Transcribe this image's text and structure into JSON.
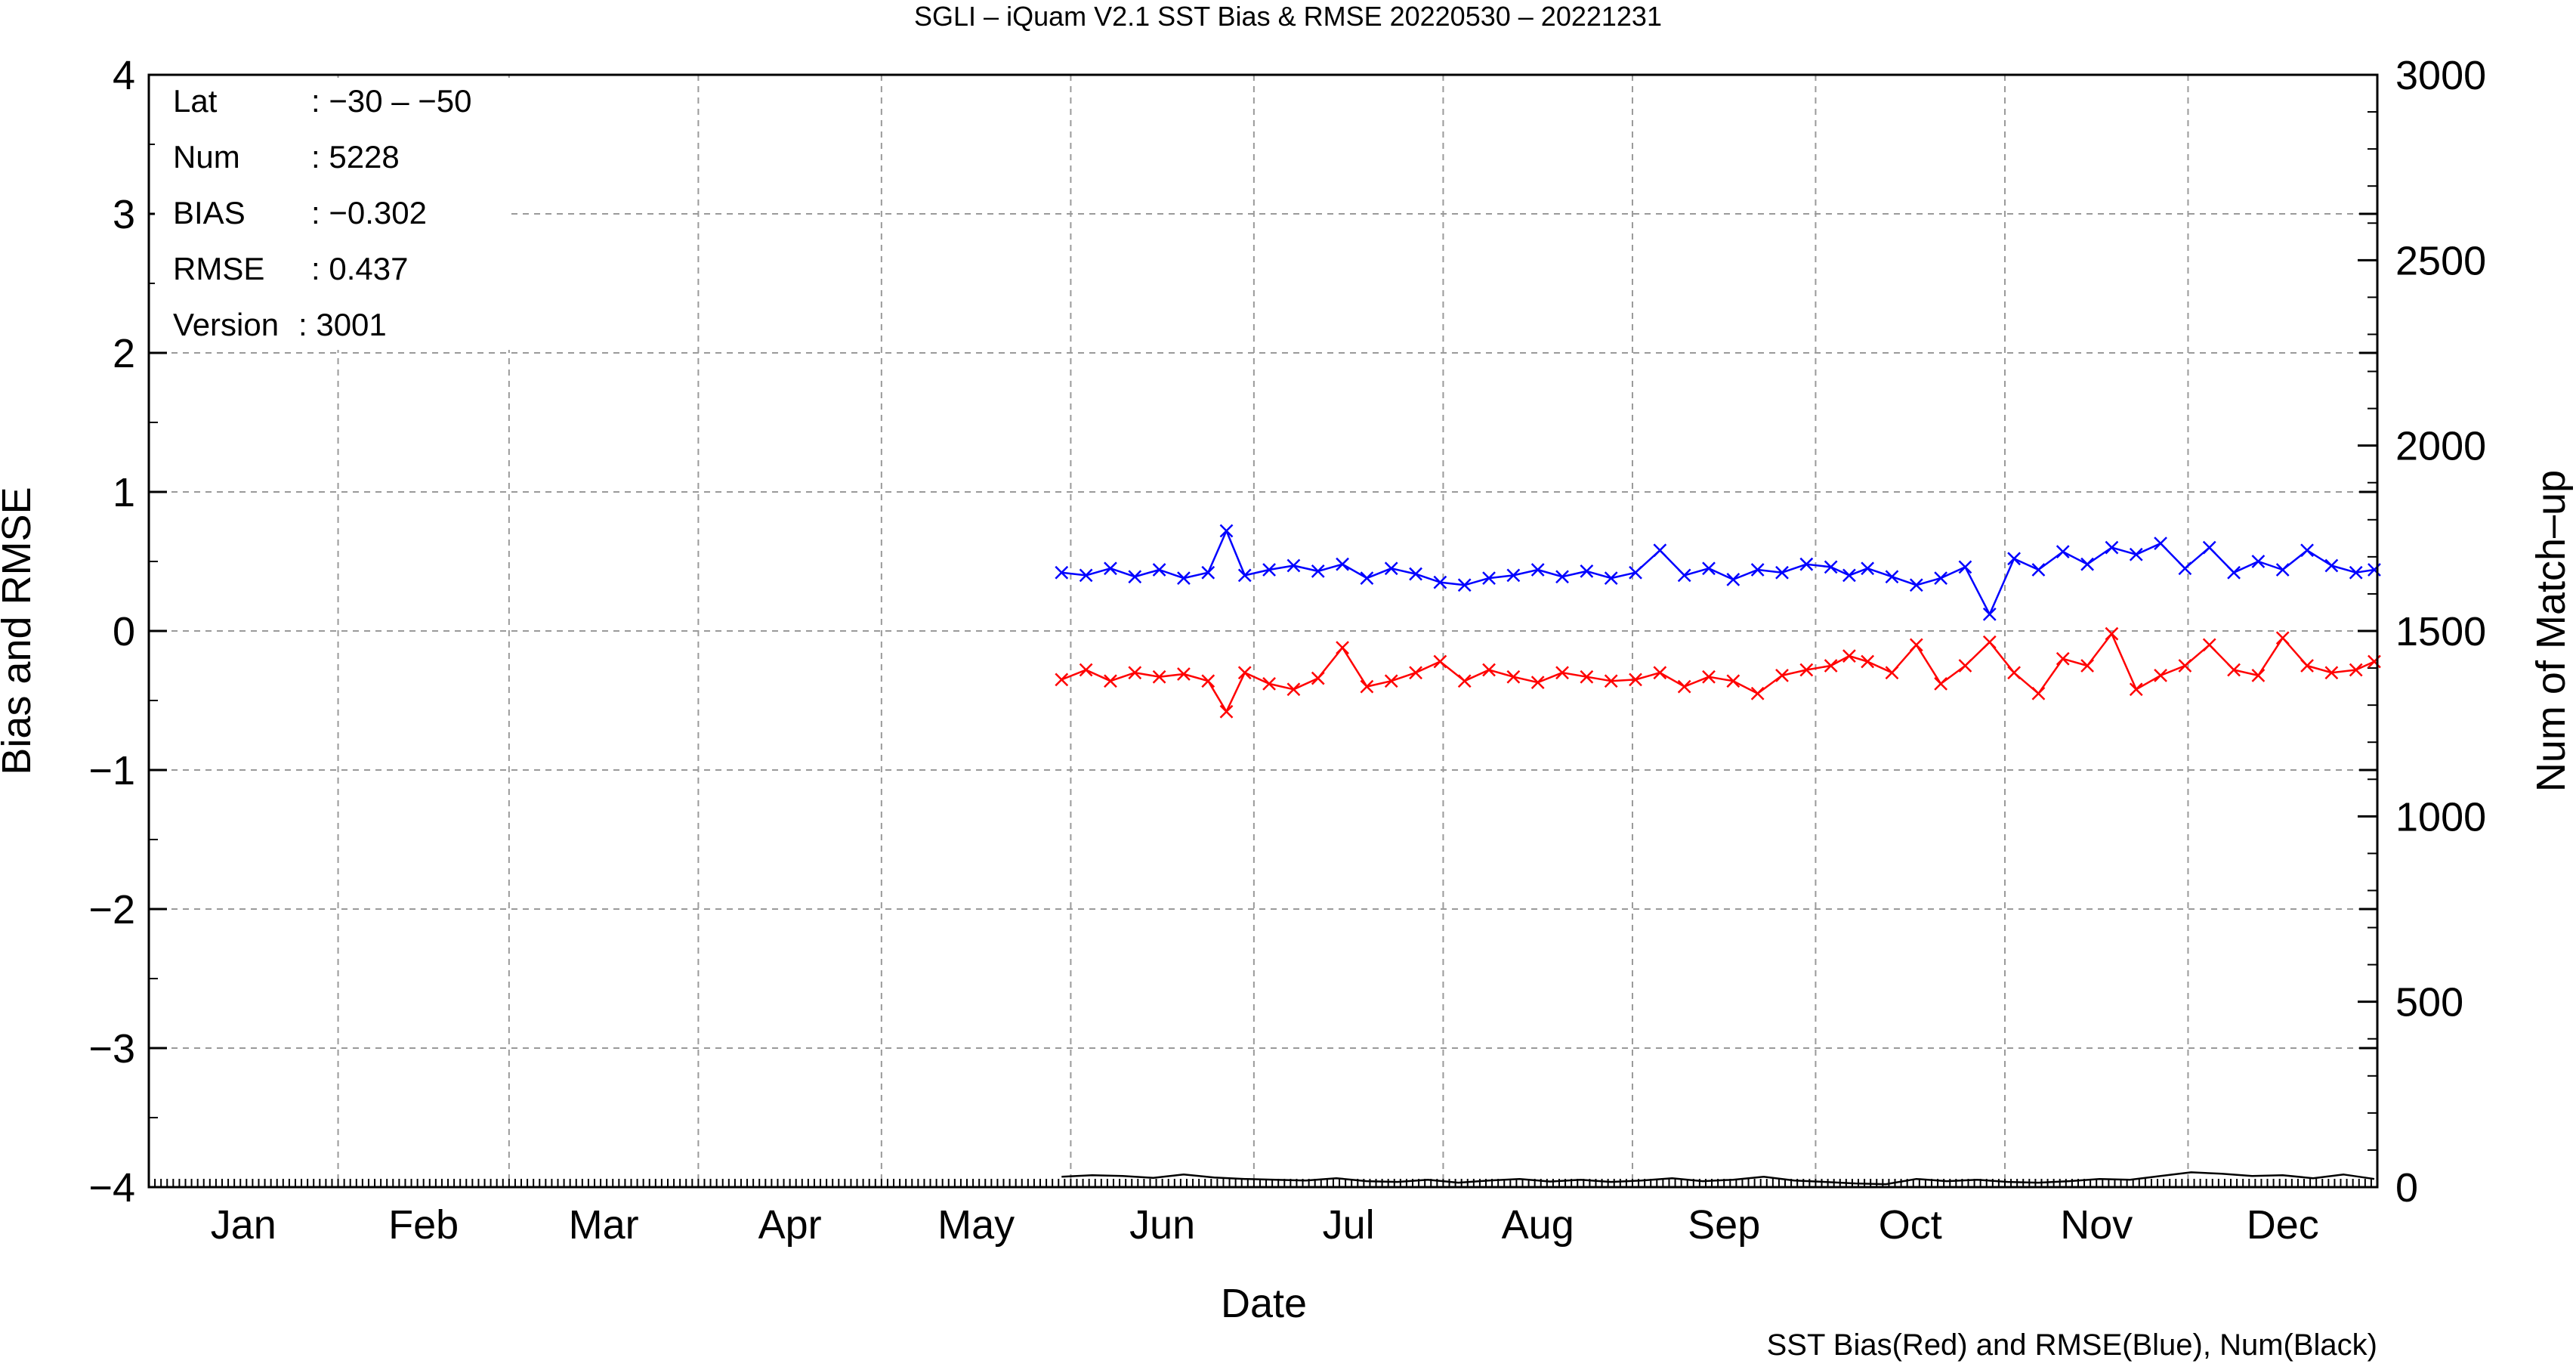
{
  "chart_data": {
    "type": "line",
    "title": "SGLI – iQuam V2.1 SST Bias & RMSE 20220530 – 20221231",
    "xlabel": "Date",
    "ylabel": "Bias and RMSE",
    "y2label": "Num of Match–up",
    "caption": "SST Bias(Red) and RMSE(Blue), Num(Black)",
    "x_domain": [
      "2022-01-01",
      "2022-12-31"
    ],
    "ylim": [
      -4,
      4
    ],
    "y2lim": [
      0,
      3000
    ],
    "y_ticks": [
      4,
      3,
      2,
      1,
      0,
      -1,
      -2,
      -3,
      -4
    ],
    "y_tick_labels": [
      "4",
      "3",
      "2",
      "1",
      "0",
      "−1",
      "−2",
      "−3",
      "−4"
    ],
    "y2_ticks": [
      3000,
      2500,
      2000,
      1500,
      1000,
      500,
      0
    ],
    "y2_tick_labels": [
      "3000",
      "2500",
      "2000",
      "1500",
      "1000",
      "500",
      "0"
    ],
    "months": [
      "Jan",
      "Feb",
      "Mar",
      "Apr",
      "May",
      "Jun",
      "Jul",
      "Aug",
      "Sep",
      "Oct",
      "Nov",
      "Dec"
    ],
    "grid": true,
    "info_box": [
      {
        "key": "Lat",
        "value": ": −30 – −50"
      },
      {
        "key": "Num",
        "value": ": 5228"
      },
      {
        "key": "BIAS",
        "value": ": −0.302"
      },
      {
        "key": "RMSE",
        "value": ": 0.437"
      },
      {
        "key": "Version",
        "value": ": 3001"
      }
    ],
    "series": [
      {
        "name": "RMSE",
        "color": "#0000ff",
        "axis": "left",
        "marker": "x",
        "dates": [
          "2022-05-30",
          "2022-06-03",
          "2022-06-07",
          "2022-06-11",
          "2022-06-15",
          "2022-06-19",
          "2022-06-23",
          "2022-06-26",
          "2022-06-29",
          "2022-07-03",
          "2022-07-07",
          "2022-07-11",
          "2022-07-15",
          "2022-07-19",
          "2022-07-23",
          "2022-07-27",
          "2022-07-31",
          "2022-08-04",
          "2022-08-08",
          "2022-08-12",
          "2022-08-16",
          "2022-08-20",
          "2022-08-24",
          "2022-08-28",
          "2022-09-01",
          "2022-09-05",
          "2022-09-09",
          "2022-09-13",
          "2022-09-17",
          "2022-09-21",
          "2022-09-25",
          "2022-09-29",
          "2022-10-03",
          "2022-10-06",
          "2022-10-09",
          "2022-10-13",
          "2022-10-17",
          "2022-10-21",
          "2022-10-25",
          "2022-10-29",
          "2022-11-02",
          "2022-11-06",
          "2022-11-10",
          "2022-11-14",
          "2022-11-18",
          "2022-11-22",
          "2022-11-26",
          "2022-11-30",
          "2022-12-04",
          "2022-12-08",
          "2022-12-12",
          "2022-12-16",
          "2022-12-20",
          "2022-12-24",
          "2022-12-28",
          "2022-12-31"
        ],
        "values": [
          0.42,
          0.4,
          0.45,
          0.39,
          0.44,
          0.38,
          0.42,
          0.72,
          0.4,
          0.44,
          0.47,
          0.43,
          0.48,
          0.38,
          0.45,
          0.41,
          0.35,
          0.33,
          0.38,
          0.4,
          0.44,
          0.39,
          0.43,
          0.38,
          0.42,
          0.58,
          0.4,
          0.45,
          0.37,
          0.44,
          0.42,
          0.48,
          0.46,
          0.4,
          0.45,
          0.39,
          0.33,
          0.38,
          0.46,
          0.12,
          0.52,
          0.44,
          0.57,
          0.48,
          0.6,
          0.55,
          0.63,
          0.45,
          0.6,
          0.42,
          0.5,
          0.44,
          0.58,
          0.47,
          0.42,
          0.44
        ]
      },
      {
        "name": "BIAS",
        "color": "#ff0000",
        "axis": "left",
        "marker": "x",
        "dates": [
          "2022-05-30",
          "2022-06-03",
          "2022-06-07",
          "2022-06-11",
          "2022-06-15",
          "2022-06-19",
          "2022-06-23",
          "2022-06-26",
          "2022-06-29",
          "2022-07-03",
          "2022-07-07",
          "2022-07-11",
          "2022-07-15",
          "2022-07-19",
          "2022-07-23",
          "2022-07-27",
          "2022-07-31",
          "2022-08-04",
          "2022-08-08",
          "2022-08-12",
          "2022-08-16",
          "2022-08-20",
          "2022-08-24",
          "2022-08-28",
          "2022-09-01",
          "2022-09-05",
          "2022-09-09",
          "2022-09-13",
          "2022-09-17",
          "2022-09-21",
          "2022-09-25",
          "2022-09-29",
          "2022-10-03",
          "2022-10-06",
          "2022-10-09",
          "2022-10-13",
          "2022-10-17",
          "2022-10-21",
          "2022-10-25",
          "2022-10-29",
          "2022-11-02",
          "2022-11-06",
          "2022-11-10",
          "2022-11-14",
          "2022-11-18",
          "2022-11-22",
          "2022-11-26",
          "2022-11-30",
          "2022-12-04",
          "2022-12-08",
          "2022-12-12",
          "2022-12-16",
          "2022-12-20",
          "2022-12-24",
          "2022-12-28",
          "2022-12-31"
        ],
        "values": [
          -0.35,
          -0.28,
          -0.36,
          -0.3,
          -0.33,
          -0.31,
          -0.36,
          -0.58,
          -0.3,
          -0.38,
          -0.42,
          -0.34,
          -0.12,
          -0.4,
          -0.36,
          -0.3,
          -0.22,
          -0.36,
          -0.28,
          -0.33,
          -0.37,
          -0.3,
          -0.33,
          -0.36,
          -0.35,
          -0.3,
          -0.4,
          -0.33,
          -0.36,
          -0.45,
          -0.32,
          -0.28,
          -0.25,
          -0.18,
          -0.22,
          -0.3,
          -0.1,
          -0.38,
          -0.25,
          -0.08,
          -0.3,
          -0.45,
          -0.2,
          -0.25,
          -0.02,
          -0.42,
          -0.32,
          -0.25,
          -0.1,
          -0.28,
          -0.32,
          -0.05,
          -0.25,
          -0.3,
          -0.28,
          -0.22
        ]
      },
      {
        "name": "Num",
        "color": "#000000",
        "axis": "right",
        "marker": "none",
        "dates": [
          "2022-05-30",
          "2022-06-04",
          "2022-06-09",
          "2022-06-14",
          "2022-06-19",
          "2022-06-24",
          "2022-06-29",
          "2022-07-04",
          "2022-07-09",
          "2022-07-14",
          "2022-07-19",
          "2022-07-24",
          "2022-07-29",
          "2022-08-03",
          "2022-08-08",
          "2022-08-13",
          "2022-08-18",
          "2022-08-23",
          "2022-08-28",
          "2022-09-02",
          "2022-09-07",
          "2022-09-12",
          "2022-09-17",
          "2022-09-22",
          "2022-09-27",
          "2022-10-02",
          "2022-10-07",
          "2022-10-12",
          "2022-10-17",
          "2022-10-22",
          "2022-10-27",
          "2022-11-01",
          "2022-11-06",
          "2022-11-11",
          "2022-11-16",
          "2022-11-21",
          "2022-11-26",
          "2022-12-01",
          "2022-12-06",
          "2022-12-11",
          "2022-12-16",
          "2022-12-21",
          "2022-12-26",
          "2022-12-31"
        ],
        "values": [
          28,
          32,
          30,
          25,
          34,
          26,
          22,
          20,
          18,
          24,
          16,
          14,
          20,
          12,
          18,
          22,
          15,
          20,
          14,
          18,
          24,
          16,
          20,
          28,
          18,
          14,
          10,
          8,
          22,
          16,
          20,
          14,
          12,
          16,
          22,
          20,
          30,
          40,
          36,
          30,
          32,
          24,
          34,
          22
        ]
      }
    ]
  }
}
